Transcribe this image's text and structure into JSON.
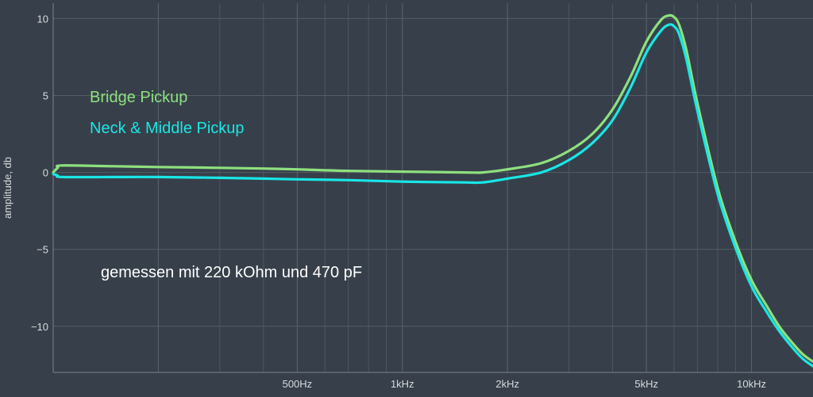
{
  "chart_data": {
    "type": "line",
    "title": "",
    "xlabel": "",
    "ylabel": "amplitude, db",
    "x_scale": "log",
    "xlim": [
      100,
      15000
    ],
    "ylim": [
      -13,
      11
    ],
    "grid": true,
    "x_ticks": [
      {
        "value": 500,
        "label": "500Hz"
      },
      {
        "value": 1000,
        "label": "1kHz"
      },
      {
        "value": 2000,
        "label": "2kHz"
      },
      {
        "value": 5000,
        "label": "5kHz"
      },
      {
        "value": 10000,
        "label": "10kHz"
      }
    ],
    "y_ticks": [
      {
        "value": 10,
        "label": "10"
      },
      {
        "value": 5,
        "label": "5"
      },
      {
        "value": 0,
        "label": "0"
      },
      {
        "value": -5,
        "label": "−5"
      },
      {
        "value": -10,
        "label": "−10"
      }
    ],
    "legend_position": "top-left",
    "annotation": "gemessen mit 220 kOhm und 470 pF",
    "series": [
      {
        "name": "Bridge Pickup",
        "color": "#8ee07e",
        "x": [
          100,
          103,
          106,
          150,
          200,
          300,
          400,
          500,
          700,
          1000,
          1500,
          1700,
          2000,
          2500,
          3000,
          3500,
          4000,
          4500,
          5000,
          5500,
          5800,
          6000,
          6200,
          6500,
          7000,
          8000,
          9000,
          10000,
          11000,
          12000,
          13000,
          14000,
          15000
        ],
        "values": [
          0.0,
          0.3,
          0.45,
          0.4,
          0.35,
          0.3,
          0.25,
          0.2,
          0.1,
          0.05,
          0.0,
          0.0,
          0.2,
          0.6,
          1.4,
          2.5,
          4.1,
          6.2,
          8.5,
          9.9,
          10.2,
          10.1,
          9.6,
          8.0,
          4.5,
          -1.0,
          -4.5,
          -7.0,
          -8.6,
          -10.0,
          -11.0,
          -11.8,
          -12.3
        ]
      },
      {
        "name": "Neck & Middle Pickup",
        "color": "#19e6e6",
        "x": [
          100,
          103,
          106,
          150,
          200,
          300,
          400,
          500,
          700,
          1000,
          1500,
          1700,
          2000,
          2500,
          3000,
          3500,
          4000,
          4500,
          5000,
          5500,
          5800,
          6000,
          6200,
          6500,
          7000,
          8000,
          9000,
          10000,
          11000,
          12000,
          13000,
          14000,
          15000
        ],
        "values": [
          -0.1,
          -0.2,
          -0.3,
          -0.3,
          -0.3,
          -0.35,
          -0.4,
          -0.45,
          -0.5,
          -0.6,
          -0.65,
          -0.65,
          -0.4,
          0.0,
          0.8,
          1.9,
          3.4,
          5.5,
          7.8,
          9.2,
          9.6,
          9.5,
          9.0,
          7.4,
          4.0,
          -1.4,
          -4.9,
          -7.4,
          -9.0,
          -10.3,
          -11.3,
          -12.1,
          -12.6
        ]
      }
    ]
  }
}
